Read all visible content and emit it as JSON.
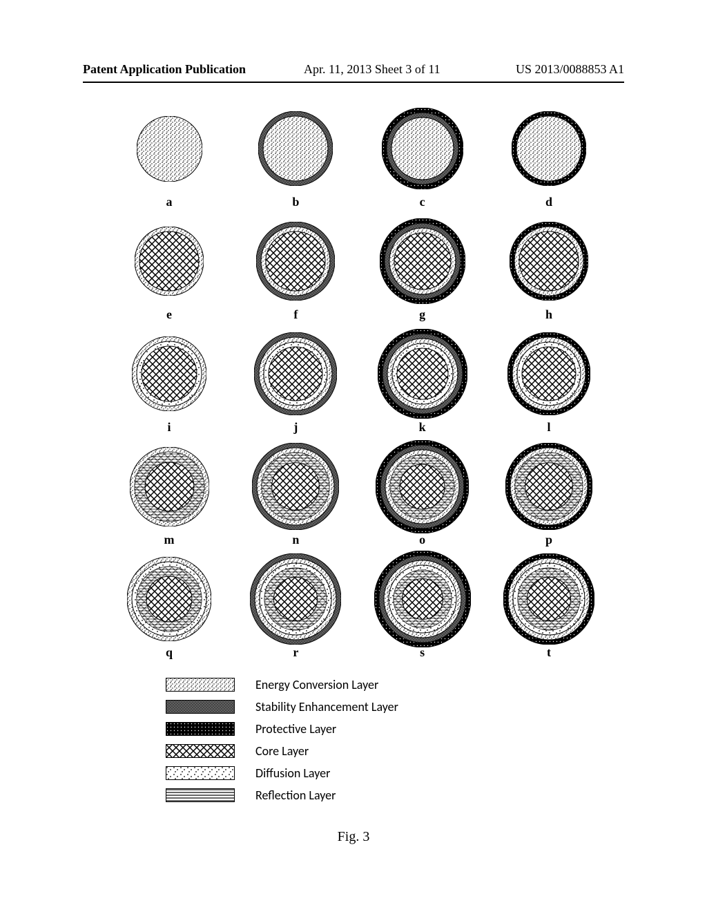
{
  "header": {
    "left": "Patent Application Publication",
    "center": "Apr. 11, 2013  Sheet 3 of 11",
    "right": "US 2013/0088853 A1"
  },
  "figure_caption": "Fig. 3",
  "circle_diameter_base": 95,
  "rows": [
    {
      "cells": [
        {
          "label": "a",
          "layers": [
            "ecl"
          ],
          "diameter": 95
        },
        {
          "label": "b",
          "layers": [
            "ecl",
            "sel"
          ],
          "diameter": 108
        },
        {
          "label": "c",
          "layers": [
            "ecl",
            "sel",
            "pl"
          ],
          "diameter": 118
        },
        {
          "label": "d",
          "layers": [
            "ecl",
            "pl"
          ],
          "diameter": 108
        }
      ]
    },
    {
      "cells": [
        {
          "label": "e",
          "layers": [
            "core",
            "ecl"
          ],
          "diameter": 100
        },
        {
          "label": "f",
          "layers": [
            "core",
            "ecl",
            "sel"
          ],
          "diameter": 114
        },
        {
          "label": "g",
          "layers": [
            "core",
            "ecl",
            "sel",
            "pl"
          ],
          "diameter": 124
        },
        {
          "label": "h",
          "layers": [
            "core",
            "ecl",
            "pl"
          ],
          "diameter": 114
        }
      ]
    },
    {
      "cells": [
        {
          "label": "i",
          "layers": [
            "core",
            "diff",
            "ecl"
          ],
          "diameter": 108
        },
        {
          "label": "j",
          "layers": [
            "core",
            "diff",
            "ecl",
            "sel"
          ],
          "diameter": 120
        },
        {
          "label": "k",
          "layers": [
            "core",
            "diff",
            "ecl",
            "sel",
            "pl"
          ],
          "diameter": 130
        },
        {
          "label": "l",
          "layers": [
            "core",
            "diff",
            "ecl",
            "pl"
          ],
          "diameter": 120
        }
      ]
    },
    {
      "cells": [
        {
          "label": "m",
          "layers": [
            "refl_core",
            "ecl"
          ],
          "diameter": 115
        },
        {
          "label": "n",
          "layers": [
            "refl_core",
            "ecl",
            "sel"
          ],
          "diameter": 126
        },
        {
          "label": "o",
          "layers": [
            "refl_core",
            "ecl",
            "sel",
            "pl"
          ],
          "diameter": 135
        },
        {
          "label": "p",
          "layers": [
            "refl_core",
            "ecl",
            "pl"
          ],
          "diameter": 126
        }
      ]
    },
    {
      "cells": [
        {
          "label": "q",
          "layers": [
            "refl_core",
            "diff",
            "ecl"
          ],
          "diameter": 122
        },
        {
          "label": "r",
          "layers": [
            "refl_core",
            "diff",
            "ecl",
            "sel"
          ],
          "diameter": 132
        },
        {
          "label": "s",
          "layers": [
            "refl_core",
            "diff",
            "ecl",
            "sel",
            "pl"
          ],
          "diameter": 140
        },
        {
          "label": "t",
          "layers": [
            "refl_core",
            "diff",
            "ecl",
            "pl"
          ],
          "diameter": 132
        }
      ]
    }
  ],
  "legend": [
    {
      "swatch": "ecl",
      "text": "Energy Conversion Layer",
      "color": "#f5d5d5",
      "border": "#000000"
    },
    {
      "swatch": "sel",
      "text": "Stability Enhancement Layer",
      "color": "#808080",
      "border": "#000000"
    },
    {
      "swatch": "pl",
      "text": "Protective Layer",
      "color": "#000000",
      "border": "#000000"
    },
    {
      "swatch": "core",
      "text": "Core Layer",
      "color": "#ffffff",
      "border": "#000000"
    },
    {
      "swatch": "diff",
      "text": "Diffusion Layer",
      "color": "#ffffff",
      "border": "#000000"
    },
    {
      "swatch": "refl",
      "text": "Reflection Layer",
      "color": "#ffffff",
      "border": "#000000"
    }
  ],
  "layer_colors": {
    "ecl": "#f0d8d8",
    "sel": "#707070",
    "pl": "#000000",
    "core": "#ffffff",
    "diff": "#ffffff",
    "refl": "#ffffff",
    "stroke": "#000000"
  }
}
